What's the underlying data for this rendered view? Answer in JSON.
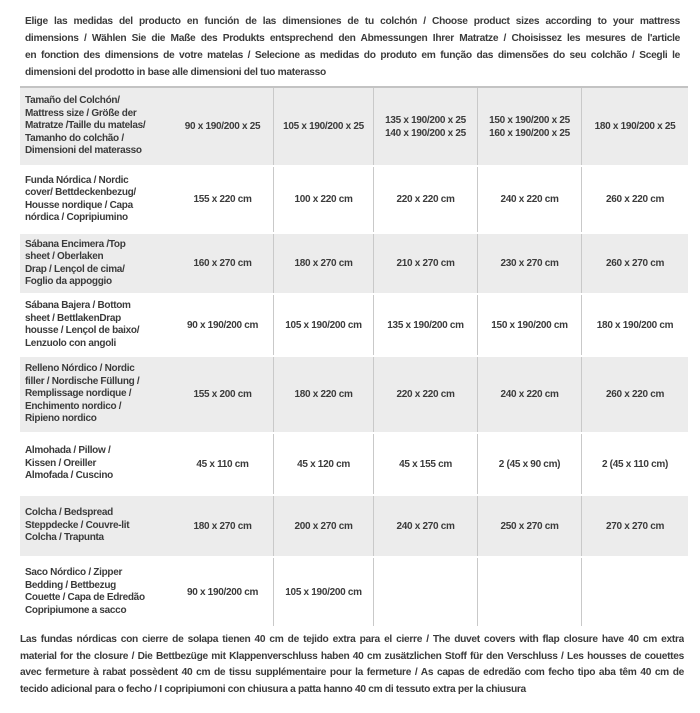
{
  "header": {
    "lines": [
      "Elige las medidas del producto en función de las dimensiones de tu colchón / Choose product sizes according to your mattress",
      "dimensions / Wählen Sie die Maße des Produkts entsprechend den Abmessungen Ihrer Matratze / Choisissez les mesures de l'article",
      "en fonction des dimensions de votre matelas / Selecione as medidas do produto em função das dimensões do seu colchão / Scegli le",
      "dimensioni del prodotto in base alle dimensioni del tuo materasso"
    ]
  },
  "table": {
    "rows": [
      {
        "label_lines": [
          "Tamaño del Colchón/",
          "Mattress size / Größe der",
          "Matratze /Taille du matelas/",
          "Tamanho do colchão /",
          "Dimensioni del materasso"
        ],
        "cells": [
          "90 x 190/200 x 25",
          "105 x 190/200 x 25",
          [
            "135 x 190/200 x 25",
            "140 x 190/200 x 25"
          ],
          [
            "150 x 190/200 x 25",
            "160 x 190/200 x 25"
          ],
          "180 x 190/200 x 25"
        ]
      },
      {
        "label_lines": [
          "Funda Nórdica /  Nordic",
          "cover/ Bettdeckenbezug/",
          "Housse nordique  / Capa",
          "nórdica / Copripiumino"
        ],
        "cells": [
          "155 x 220 cm",
          "100 x 220 cm",
          "220 x 220 cm",
          "240 x 220 cm",
          "260 x 220 cm"
        ]
      },
      {
        "label_lines": [
          "Sábana Encimera /Top",
          "sheet / Oberlaken",
          "Drap / Lençol de cima/",
          "Foglio da appoggio"
        ],
        "cells": [
          "160 x 270 cm",
          "180 x 270 cm",
          "210 x 270 cm",
          "230 x 270 cm",
          "260 x 270 cm"
        ]
      },
      {
        "label_lines": [
          "Sábana Bajera / Bottom",
          "sheet / BettlakenDrap",
          "housse / Lençol de baixo/",
          "Lenzuolo con angoli"
        ],
        "cells": [
          "90 x 190/200 cm",
          "105 x 190/200 cm",
          "135 x 190/200 cm",
          "150 x 190/200 cm",
          "180 x 190/200 cm"
        ]
      },
      {
        "label_lines": [
          "Relleno Nórdico / Nordic",
          "filler / Nordische Füllung /",
          "Remplissage nordique /",
          "Enchimento nordico /",
          "Ripieno nordico"
        ],
        "cells": [
          "155 x 200 cm",
          "180 x 220 cm",
          "220 x 220 cm",
          "240 x 220 cm",
          "260 x 220 cm"
        ]
      },
      {
        "label_lines": [
          "Almohada  / Pillow /",
          "Kissen / Oreiller",
          "Almofada / Cuscino"
        ],
        "cells": [
          "45 x 110 cm",
          "45 x 120 cm",
          "45 x 155 cm",
          "2 (45 x 90 cm)",
          "2 (45 x 110 cm)"
        ]
      },
      {
        "label_lines": [
          "Colcha / Bedspread",
          "Steppdecke / Couvre-lit",
          "Colcha / Trapunta"
        ],
        "cells": [
          "180 x 270 cm",
          "200 x 270 cm",
          "240 x 270 cm",
          "250 x 270 cm",
          "270 x 270 cm"
        ]
      },
      {
        "label_lines": [
          "Saco Nórdico / Zipper",
          "Bedding / Bettbezug",
          "Couette  / Capa de Edredão",
          "Copripiumone a sacco"
        ],
        "cells": [
          "90 x 190/200 cm",
          "105 x 190/200 cm",
          "",
          "",
          ""
        ]
      }
    ]
  },
  "footer": {
    "lines": [
      "Las fundas nórdicas con cierre de solapa tienen 40 cm de tejido extra para el cierre  / The duvet covers with flap closure have 40 cm extra",
      "material for the closure / Die Bettbezüge mit Klappenverschluss haben 40 cm zusätzlichen Stoff für den Verschluss / Les housses de couettes",
      "avec fermeture à rabat possèdent 40 cm de tissu supplémentaire pour la fermeture / As capas de edredão com fecho tipo aba têm 40 cm de",
      "tecido adicional para o fecho / I copripiumoni con chiusura a patta hanno 40 cm di tessuto extra per la chiusura"
    ]
  },
  "colors": {
    "text": "#3b3b3b",
    "row_gray": "#ececec",
    "row_white": "#ffffff",
    "column_separator": "#c9c9c9",
    "table_top_border": "#c3c3c3"
  }
}
